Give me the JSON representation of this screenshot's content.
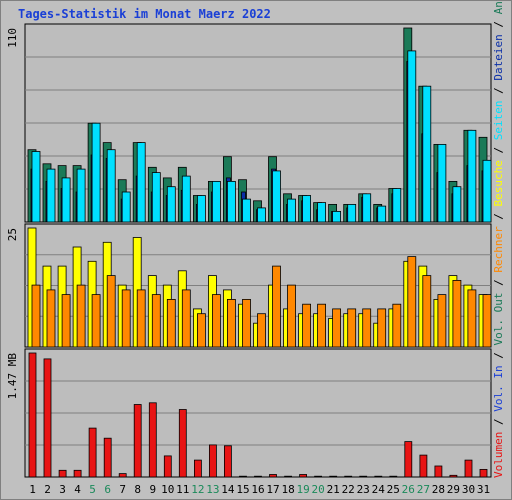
{
  "chart_data": {
    "title": "Tages-Statistik im Monat Maerz 2022",
    "days": [
      "1",
      "2",
      "3",
      "4",
      "5",
      "6",
      "7",
      "8",
      "9",
      "10",
      "11",
      "12",
      "13",
      "14",
      "15",
      "16",
      "17",
      "18",
      "19",
      "20",
      "21",
      "22",
      "23",
      "24",
      "25",
      "26",
      "27",
      "28",
      "29",
      "30",
      "31"
    ],
    "weekend_days": [
      "5",
      "6",
      "12",
      "13",
      "19",
      "20",
      "26",
      "27"
    ],
    "colors": {
      "title": "#1a3fd6",
      "weekday_label": "#000000",
      "weekend_label": "#1b8a5a",
      "anfragen": "#1b7a58",
      "dateien": "#0a2fa8",
      "seiten": "#00e0ff",
      "besuche": "#ffff00",
      "rechner": "#ff8800",
      "volumen": "#e81414",
      "vol_in": "#1a3fd6",
      "vol_out": "#1b7a58",
      "background": "#c0c0c0",
      "plot_bg": "#bdbdbd",
      "grid": "#808080"
    },
    "panels": [
      {
        "type": "bar",
        "ymax_label": "110",
        "ylim": [
          0,
          110
        ],
        "series": [
          {
            "name": "Anfragen",
            "values": [
              41,
              33,
              32,
              32,
              56,
              45,
              24,
              45,
              31,
              25,
              31,
              15,
              23,
              37,
              24,
              12,
              37,
              16,
              15,
              11,
              10,
              10,
              16,
              10,
              19,
              110,
              77,
              44,
              23,
              52,
              48
            ]
          },
          {
            "name": "Dateien",
            "values": [
              30,
              23,
              19,
              17,
              38,
              36,
              13,
              26,
              17,
              15,
              18,
              10,
              17,
              25,
              17,
              7,
              30,
              10,
              12,
              7,
              6,
              8,
              14,
              8,
              16,
              91,
              50,
              28,
              16,
              32,
              29
            ]
          },
          {
            "name": "Seiten",
            "values": [
              40,
              30,
              25,
              30,
              56,
              41,
              17,
              45,
              28,
              20,
              26,
              15,
              23,
              23,
              13,
              8,
              29,
              13,
              15,
              11,
              6,
              10,
              16,
              9,
              19,
              97,
              77,
              44,
              20,
              52,
              35
            ]
          }
        ]
      },
      {
        "type": "bar",
        "ymax_label": "25",
        "ylim": [
          0,
          25
        ],
        "series": [
          {
            "name": "Besuche",
            "values": [
              25,
              17,
              17,
              21,
              18,
              22,
              13,
              23,
              15,
              13,
              16,
              8,
              15,
              12,
              9,
              5,
              13,
              8,
              7,
              7,
              6,
              7,
              7,
              5,
              8,
              18,
              17,
              10,
              15,
              13,
              11
            ]
          },
          {
            "name": "Rechner",
            "values": [
              13,
              12,
              11,
              13,
              11,
              15,
              12,
              12,
              11,
              10,
              12,
              7,
              11,
              10,
              10,
              7,
              17,
              13,
              9,
              9,
              8,
              8,
              8,
              8,
              9,
              19,
              15,
              11,
              14,
              12,
              11
            ]
          }
        ]
      },
      {
        "type": "bar",
        "ymax_label": "1.47 MB",
        "ylim": [
          0,
          1.47
        ],
        "series": [
          {
            "name": "Volumen",
            "values": [
              1.47,
              1.4,
              0.08,
              0.08,
              0.58,
              0.46,
              0.04,
              0.86,
              0.88,
              0.25,
              0.8,
              0.2,
              0.38,
              0.37,
              0.01,
              0.01,
              0.03,
              0.01,
              0.03,
              0.01,
              0.01,
              0.01,
              0.01,
              0.01,
              0.01,
              0.42,
              0.26,
              0.13,
              0.02,
              0.2,
              0.09
            ]
          }
        ]
      }
    ],
    "right_labels": {
      "top": [
        "Anfragen",
        "Dateien",
        "Seiten",
        "Besuche",
        "Rechner",
        "Vol. Out",
        "Vol. In",
        "Volumen"
      ],
      "separator": " / "
    }
  }
}
